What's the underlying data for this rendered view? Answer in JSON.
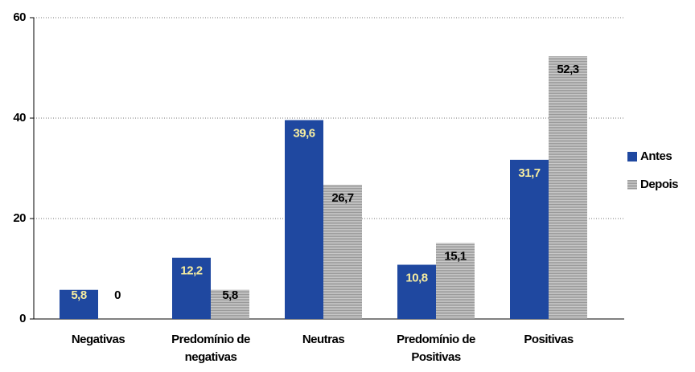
{
  "chart_data": {
    "type": "bar",
    "categories": [
      "Negativas",
      "Predomínio de negativas",
      "Neutras",
      "Predomínio de Positivas",
      "Positivas"
    ],
    "series": [
      {
        "name": "Antes",
        "color": "#1f48a0",
        "label_color": "#f5eca0",
        "values": [
          5.8,
          12.2,
          39.6,
          10.8,
          31.7
        ],
        "value_labels": [
          "5,8",
          "12,2",
          "39,6",
          "10,8",
          "31,7"
        ]
      },
      {
        "name": "Depois",
        "color": "#b4b4b4",
        "label_color": "#000000",
        "values": [
          0,
          5.8,
          26.7,
          15.1,
          52.3
        ],
        "value_labels": [
          "0",
          "5,8",
          "26,7",
          "15,1",
          "52,3"
        ]
      }
    ],
    "ylim": [
      0,
      60
    ],
    "yticks": [
      0,
      20,
      40,
      60
    ],
    "grid": true,
    "legend": "right"
  }
}
